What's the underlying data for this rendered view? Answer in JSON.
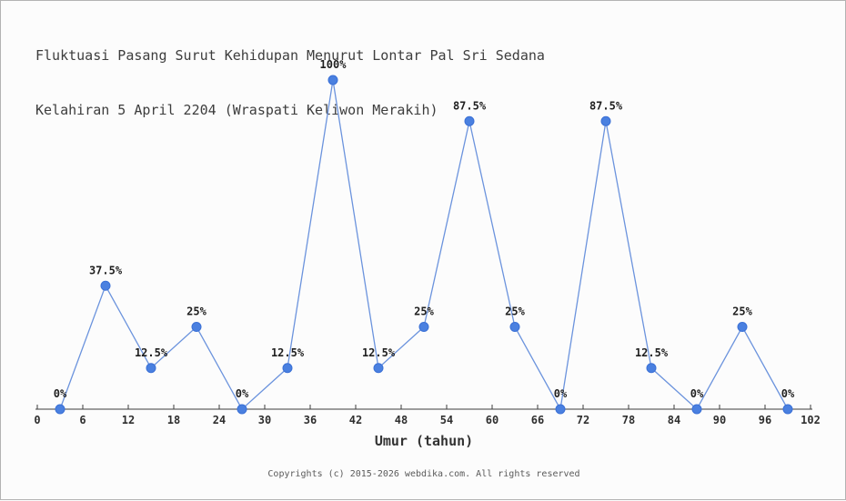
{
  "header": {
    "title_line1": "Fluktuasi Pasang Surut Kehidupan Menurut Lontar Pal Sri Sedana",
    "title_line2": "Kelahiran 5 April 2204 (Wraspati Keliwon Merakih)"
  },
  "chart_data": {
    "type": "line",
    "title": "Fluktuasi Pasang Surut Kehidupan Menurut Lontar Pal Sri Sedana Kelahiran 5 April 2204 (Wraspati Keliwon Merakih)",
    "xlabel": "Umur (tahun)",
    "ylabel": "",
    "x": [
      3,
      9,
      15,
      21,
      27,
      33,
      39,
      45,
      51,
      57,
      63,
      69,
      75,
      81,
      87,
      93,
      99
    ],
    "values": [
      0,
      37.5,
      12.5,
      25,
      0,
      12.5,
      100,
      12.5,
      25,
      87.5,
      25,
      0,
      87.5,
      12.5,
      0,
      25,
      0
    ],
    "point_labels": [
      "0%",
      "37.5%",
      "12.5%",
      "25%",
      "0%",
      "12.5%",
      "100%",
      "12.5%",
      "25%",
      "87.5%",
      "25%",
      "0%",
      "87.5%",
      "12.5%",
      "0%",
      "25%",
      "0%"
    ],
    "x_ticks": [
      0,
      6,
      12,
      18,
      24,
      30,
      36,
      42,
      48,
      54,
      60,
      66,
      72,
      78,
      84,
      90,
      96,
      102
    ],
    "xlim": [
      0,
      102
    ],
    "ylim": [
      0,
      100
    ],
    "grid": false,
    "legend": false,
    "colors": {
      "line": "#6b93dd",
      "marker": "#4a80e0",
      "marker_edge": "#3a70d6",
      "axis": "#3c3c3c",
      "tick_label": "#2e2e2e",
      "point_label": "#1f1f1f"
    }
  },
  "footer": {
    "copyright": "Copyrights (c) 2015-2026 webdika.com. All rights reserved"
  }
}
